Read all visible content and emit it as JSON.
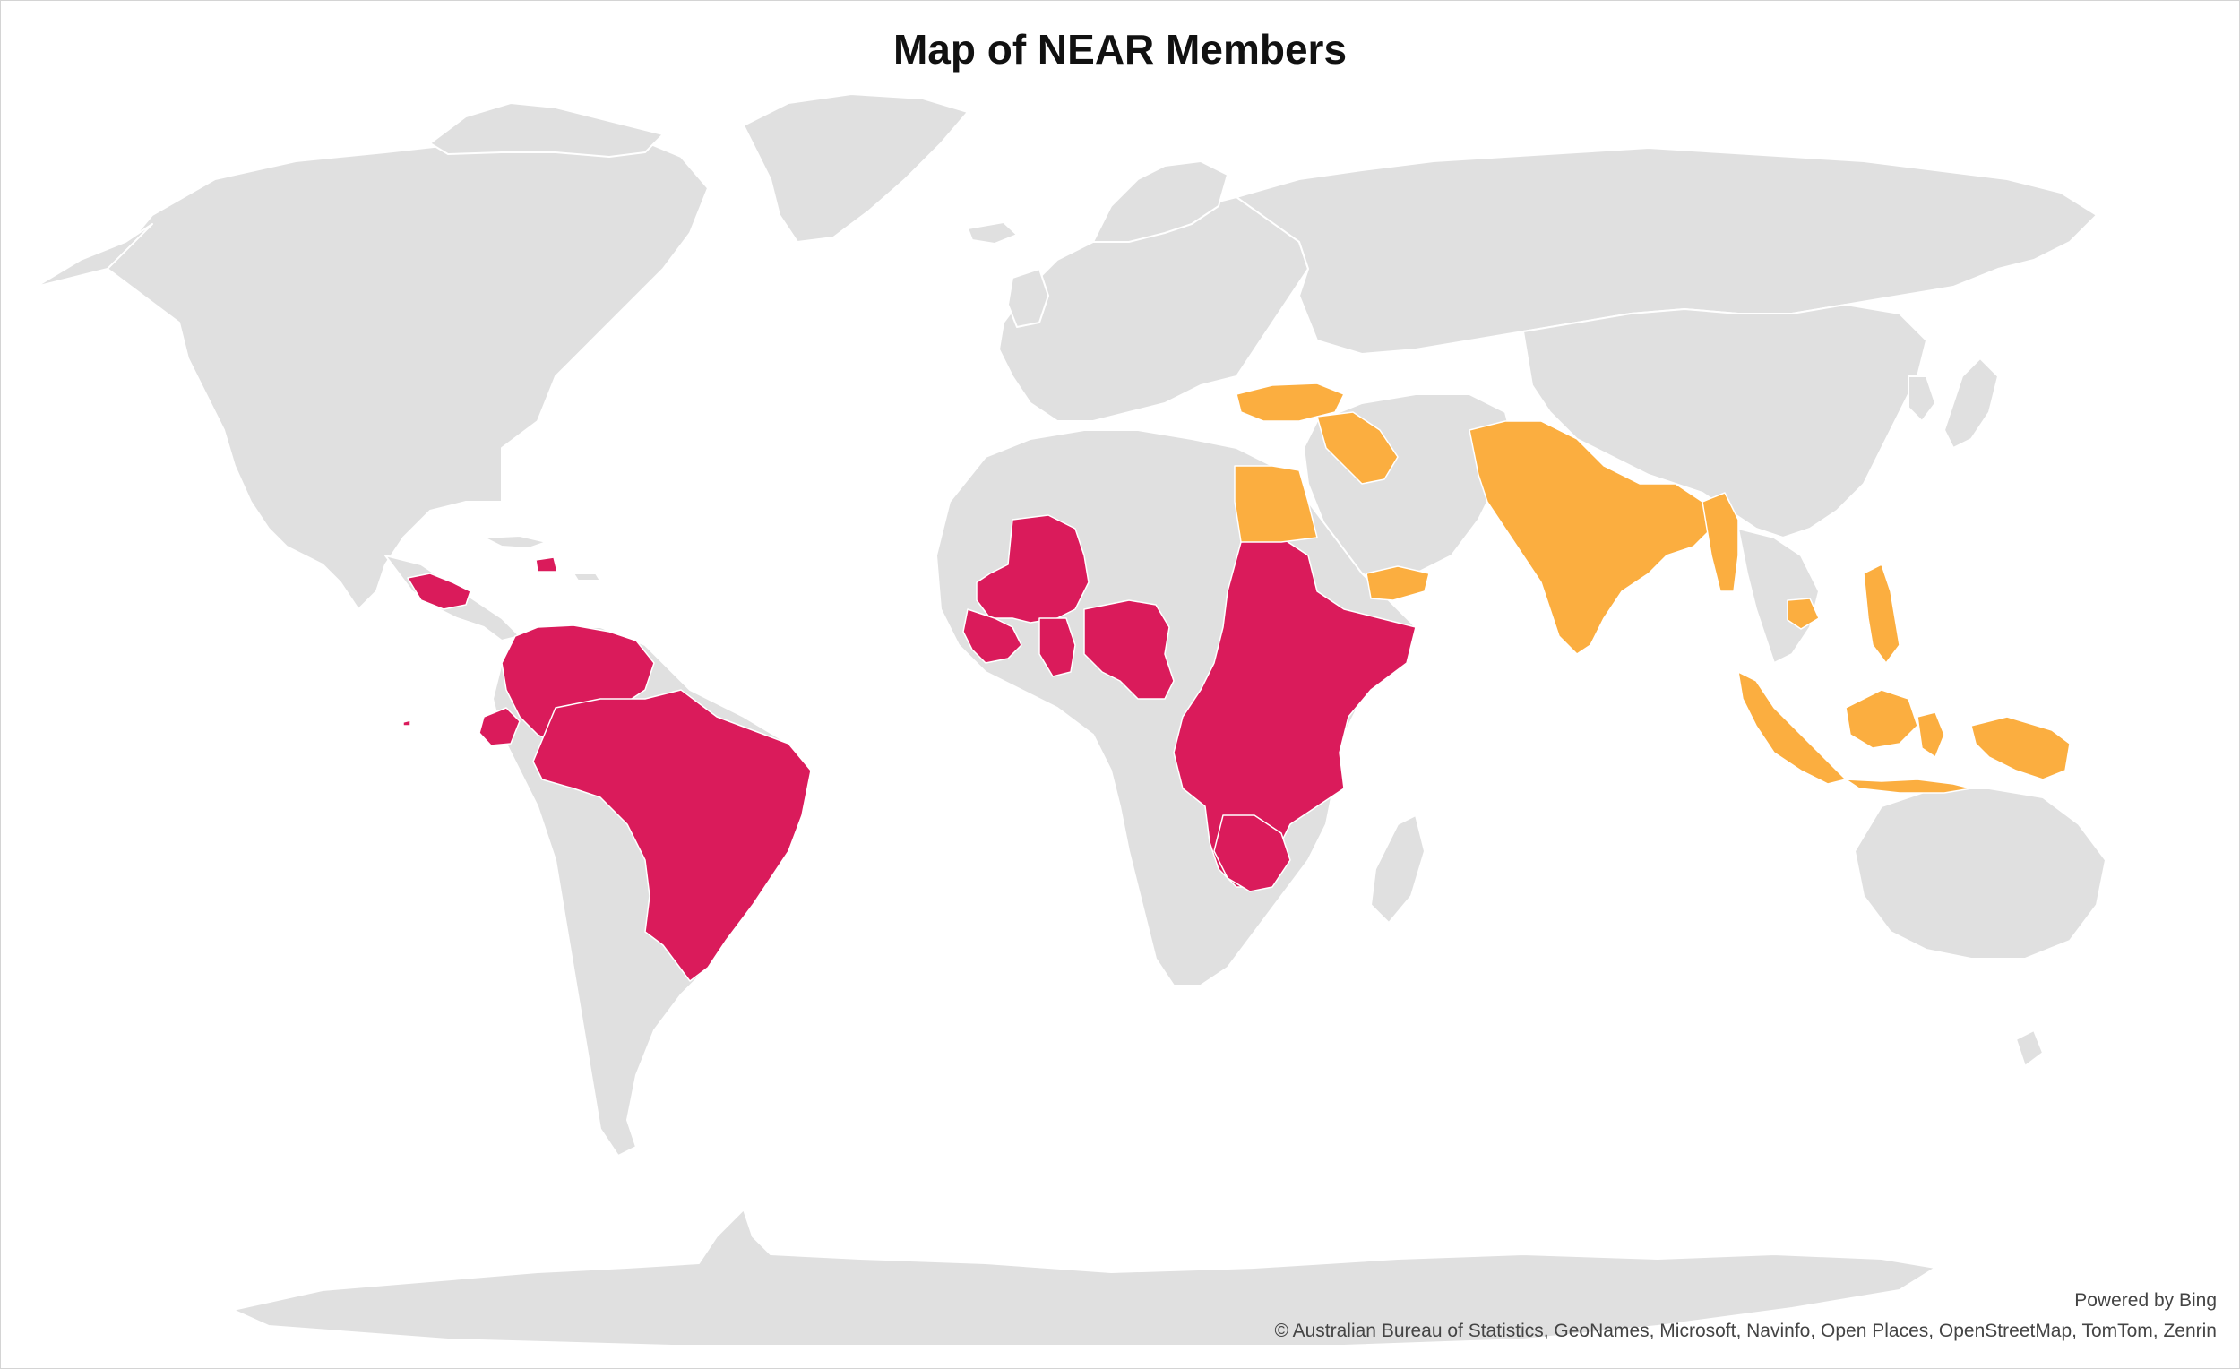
{
  "title": "Map of NEAR Members",
  "attribution": {
    "powered_by": "Powered by Bing",
    "copyright": "© Australian Bureau of Statistics, GeoNames, Microsoft, Navinfo, Open Places, OpenStreetMap, TomTom, Zenrin"
  },
  "colors": {
    "background": "#ffffff",
    "land": "#e0e0e0",
    "category_a": "#da1b5b",
    "category_b": "#fbae40"
  },
  "map": {
    "projection": "world",
    "highlighted_regions": {
      "category_a": [
        "Guatemala",
        "Honduras",
        "Haiti",
        "Colombia",
        "Venezuela",
        "Ecuador",
        "Brazil",
        "Mali",
        "Senegal",
        "Guinea",
        "Sierra Leone",
        "Liberia",
        "Burkina Faso",
        "Ghana",
        "Togo",
        "Benin",
        "Nigeria",
        "Cameroon",
        "Sudan",
        "South Sudan",
        "Ethiopia",
        "Somalia",
        "Kenya",
        "Uganda",
        "Democratic Republic of the Congo",
        "Tanzania",
        "Zambia",
        "Malawi",
        "Zimbabwe"
      ],
      "category_b": [
        "Turkey",
        "Syria",
        "Iraq",
        "Lebanon",
        "Jordan",
        "Egypt",
        "Yemen",
        "Afghanistan",
        "Pakistan",
        "India",
        "Nepal",
        "Bangladesh",
        "Myanmar",
        "Cambodia",
        "Philippines",
        "Indonesia"
      ]
    }
  }
}
